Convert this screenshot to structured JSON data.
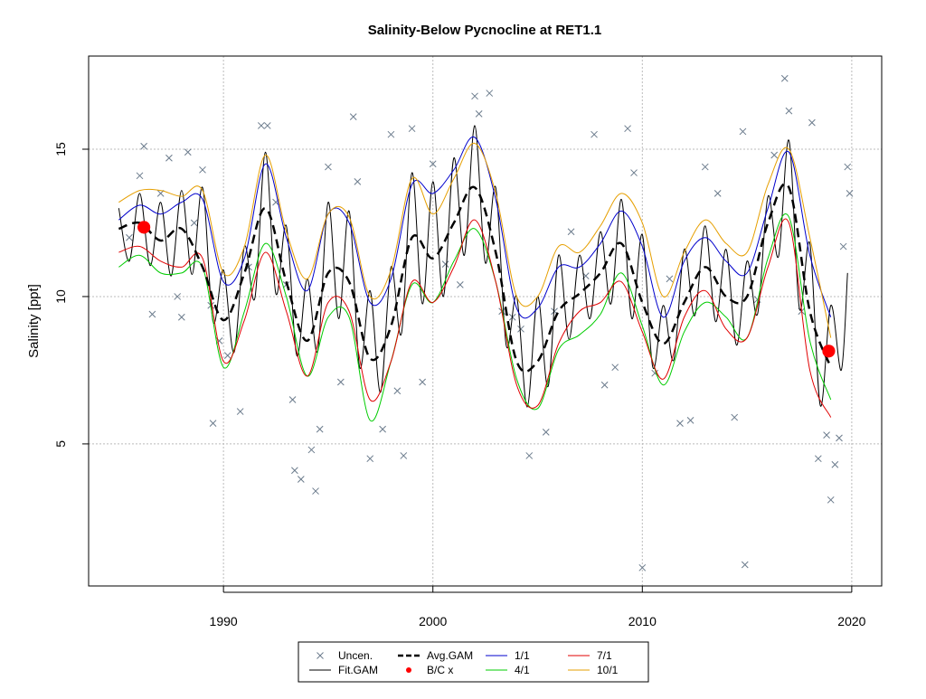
{
  "chart_data": {
    "type": "line",
    "title": "Salinity-Below Pycnocline at RET1.1",
    "y_label": "Salinity [ppt]",
    "xlim": [
      1983.56,
      2021.43
    ],
    "ylim": [
      0.18,
      18.16
    ],
    "xticks": [
      1990,
      2000,
      2010,
      2020
    ],
    "yticks": [
      5,
      10,
      15
    ],
    "grid": true,
    "legend": "bottom",
    "series": [
      {
        "name": "Uncen.",
        "style": "points",
        "color": "#6b7b8c",
        "x": [
          1985.5,
          1986,
          1986.2,
          1986.6,
          1987,
          1987.4,
          1987.8,
          1988,
          1988.3,
          1988.6,
          1989,
          1989.4,
          1989.5,
          1989.8,
          1990.2,
          1990.8,
          1991.2,
          1991.8,
          1992.1,
          1992.5,
          1993,
          1993.3,
          1993.4,
          1993.7,
          1994.2,
          1994.4,
          1994.6,
          1995,
          1995.6,
          1996.2,
          1996.4,
          1997,
          1997.6,
          1998,
          1998.3,
          1998.6,
          1999,
          1999.5,
          2000,
          2000.6,
          2001.3,
          2002,
          2002.2,
          2002.7,
          2003.3,
          2003.8,
          2004.2,
          2004.6,
          2005.4,
          2005.8,
          2006.6,
          2007.3,
          2007.7,
          2008.2,
          2008.7,
          2009.3,
          2009.6,
          2010,
          2010.6,
          2011.3,
          2011.8,
          2012.3,
          2013,
          2013.6,
          2014.4,
          2014.8,
          2014.9,
          2015.5,
          2016.3,
          2016.8,
          2017,
          2017.6,
          2018.1,
          2018.4,
          2018.8,
          2019,
          2019.2,
          2019.4,
          2019.8,
          2019.9,
          2019.6
        ],
        "values": [
          12.0,
          14.1,
          15.1,
          9.4,
          13.5,
          14.7,
          10.0,
          9.3,
          14.9,
          12.5,
          14.3,
          9.7,
          5.7,
          8.5,
          8.0,
          6.1,
          11.0,
          15.8,
          15.8,
          13.2,
          10.4,
          6.5,
          4.1,
          3.8,
          4.8,
          3.4,
          5.5,
          14.4,
          7.1,
          16.1,
          13.9,
          4.5,
          5.5,
          15.5,
          6.8,
          4.6,
          15.7,
          7.1,
          14.5,
          11.1,
          10.4,
          16.8,
          16.2,
          16.9,
          9.5,
          9.3,
          8.9,
          4.6,
          5.4,
          9.5,
          12.2,
          10.7,
          15.5,
          7.0,
          7.6,
          15.7,
          14.2,
          0.8,
          7.4,
          10.6,
          5.7,
          5.8,
          14.4,
          13.5,
          5.9,
          15.6,
          0.9,
          9.9,
          14.8,
          17.4,
          16.3,
          9.5,
          15.9,
          4.5,
          5.3,
          3.1,
          4.3,
          5.2,
          14.4,
          13.5,
          11.7
        ]
      },
      {
        "name": "Fit.GAM",
        "style": "line",
        "color": "#000000",
        "x": [
          1985,
          1985.5,
          1986,
          1986.5,
          1987,
          1987.5,
          1988,
          1988.5,
          1989,
          1989.5,
          1990,
          1990.5,
          1991,
          1991.5,
          1992,
          1992.5,
          1993,
          1993.5,
          1994,
          1994.5,
          1995,
          1995.5,
          1996,
          1996.5,
          1997,
          1997.5,
          1998,
          1998.5,
          1999,
          1999.5,
          2000,
          2000.5,
          2001,
          2001.5,
          2002,
          2002.5,
          2003,
          2003.5,
          2004,
          2004.5,
          2005,
          2005.5,
          2006,
          2006.5,
          2007,
          2007.5,
          2008,
          2008.5,
          2009,
          2009.5,
          2010,
          2010.5,
          2011,
          2011.5,
          2012,
          2012.5,
          2013,
          2013.5,
          2014,
          2014.5,
          2015,
          2015.5,
          2016,
          2016.5,
          2017,
          2017.5,
          2018,
          2018.5,
          2019,
          2019.5,
          2019.8
        ],
        "values": [
          13.0,
          11.2,
          13.5,
          11.05,
          13.2,
          10.7,
          13.6,
          10.75,
          13.7,
          9.15,
          10.9,
          8.1,
          11.7,
          9.95,
          14.9,
          10.1,
          12.4,
          8.0,
          10.6,
          8.15,
          13.2,
          9.25,
          12.9,
          7.6,
          10.2,
          6.75,
          11.0,
          8.75,
          14.2,
          9.75,
          13.9,
          10.0,
          14.7,
          11.4,
          15.8,
          11.15,
          13.7,
          8.35,
          10.0,
          6.25,
          10.0,
          6.95,
          11.4,
          8.55,
          11.4,
          9.25,
          12.2,
          9.75,
          13.3,
          9.25,
          12.1,
          7.6,
          9.7,
          7.85,
          11.6,
          9.35,
          12.4,
          9.15,
          11.6,
          8.35,
          11.2,
          9.4,
          13.4,
          11.35,
          15.3,
          9.6,
          11.8,
          6.3,
          9.7,
          7.5,
          10.8
        ]
      },
      {
        "name": "Avg.GAM",
        "style": "dashed",
        "color": "#000000",
        "x": [
          1985,
          1986,
          1987,
          1988,
          1989,
          1990,
          1991,
          1992,
          1993,
          1994,
          1995,
          1996,
          1997,
          1998,
          1999,
          2000,
          2001,
          2002,
          2003,
          2004,
          2005,
          2006,
          2007,
          2008,
          2009,
          2010,
          2011,
          2012,
          2013,
          2014,
          2015,
          2016,
          2017,
          2018,
          2019
        ],
        "values": [
          12.3,
          12.5,
          11.9,
          12.3,
          11.0,
          9.2,
          10.8,
          13.0,
          10.5,
          8.5,
          10.8,
          10.5,
          7.9,
          9.0,
          12.0,
          11.3,
          12.5,
          13.7,
          11.5,
          7.8,
          7.8,
          9.5,
          10.1,
          10.8,
          11.8,
          9.8,
          8.4,
          9.8,
          11.0,
          10.0,
          10.0,
          12.5,
          13.7,
          9.5,
          7.6
        ]
      },
      {
        "name": "B/C x",
        "style": "dot",
        "color": "#ff0000",
        "x": [
          1986.2,
          2018.9
        ],
        "values": [
          12.35,
          8.15
        ]
      },
      {
        "name": "1/1",
        "style": "line",
        "color": "#0000cc",
        "x": [
          1985,
          1986,
          1987,
          1988,
          1989,
          1990,
          1991,
          1992,
          1993,
          1994,
          1995,
          1996,
          1997,
          1998,
          1999,
          2000,
          2001,
          2002,
          2003,
          2004,
          2005,
          2006,
          2007,
          2008,
          2009,
          2010,
          2011,
          2012,
          2013,
          2014,
          2015,
          2016,
          2017,
          2018,
          2019
        ],
        "values": [
          12.6,
          13.1,
          12.8,
          13.2,
          13.3,
          10.5,
          11.3,
          14.5,
          12.0,
          10.2,
          12.8,
          12.5,
          9.8,
          10.6,
          13.8,
          13.5,
          14.3,
          15.4,
          13.3,
          9.6,
          9.6,
          11.0,
          11.0,
          11.8,
          12.9,
          11.7,
          9.3,
          11.2,
          12.0,
          11.2,
          10.8,
          13.0,
          14.9,
          11.4,
          9.3
        ]
      },
      {
        "name": "4/1",
        "style": "line",
        "color": "#00cc00",
        "x": [
          1985,
          1986,
          1987,
          1988,
          1989,
          1990,
          1991,
          1992,
          1993,
          1994,
          1995,
          1996,
          1997,
          1998,
          1999,
          2000,
          2001,
          2002,
          2003,
          2004,
          2005,
          2006,
          2007,
          2008,
          2009,
          2010,
          2011,
          2012,
          2013,
          2014,
          2015,
          2016,
          2017,
          2018,
          2019
        ],
        "values": [
          11.0,
          11.4,
          10.8,
          10.8,
          11.0,
          7.6,
          9.5,
          11.8,
          10.0,
          7.3,
          9.3,
          9.3,
          5.8,
          7.8,
          10.4,
          9.8,
          11.2,
          12.3,
          10.5,
          7.2,
          6.2,
          8.2,
          8.7,
          9.4,
          10.8,
          9.0,
          7.0,
          8.8,
          9.8,
          9.3,
          8.6,
          11.3,
          12.7,
          8.5,
          6.5
        ]
      },
      {
        "name": "7/1",
        "style": "line",
        "color": "#e00000",
        "x": [
          1985,
          1986,
          1987,
          1988,
          1989,
          1990,
          1991,
          1992,
          1993,
          1994,
          1995,
          1996,
          1997,
          1998,
          1999,
          2000,
          2001,
          2002,
          2003,
          2004,
          2005,
          2006,
          2007,
          2008,
          2009,
          2010,
          2011,
          2012,
          2013,
          2014,
          2015,
          2016,
          2017,
          2018,
          2019
        ],
        "values": [
          11.5,
          11.7,
          11.2,
          11.0,
          11.3,
          7.8,
          9.2,
          11.5,
          9.5,
          7.3,
          9.8,
          9.5,
          6.5,
          7.8,
          10.5,
          9.8,
          11.0,
          12.6,
          10.5,
          7.0,
          6.3,
          8.4,
          9.5,
          9.8,
          10.5,
          8.8,
          7.2,
          9.3,
          10.2,
          8.9,
          8.6,
          11.0,
          12.5,
          7.5,
          5.9
        ]
      },
      {
        "name": "10/1",
        "style": "line",
        "color": "#e69f00",
        "x": [
          1985,
          1986,
          1987,
          1988,
          1989,
          1990,
          1991,
          1992,
          1993,
          1994,
          1995,
          1996,
          1997,
          1998,
          1999,
          2000,
          2001,
          2002,
          2003,
          2004,
          2005,
          2006,
          2007,
          2008,
          2009,
          2010,
          2011,
          2012,
          2013,
          2014,
          2015,
          2016,
          2017,
          2018,
          2019
        ],
        "values": [
          13.2,
          13.6,
          13.6,
          13.4,
          13.6,
          10.8,
          11.7,
          14.8,
          12.2,
          10.6,
          12.8,
          12.7,
          10.0,
          10.9,
          14.0,
          12.8,
          14.0,
          15.2,
          13.5,
          10.0,
          10.0,
          11.7,
          11.5,
          12.4,
          13.5,
          12.5,
          10.0,
          11.5,
          12.6,
          11.8,
          11.5,
          13.8,
          15.0,
          12.0,
          8.6
        ]
      }
    ]
  }
}
